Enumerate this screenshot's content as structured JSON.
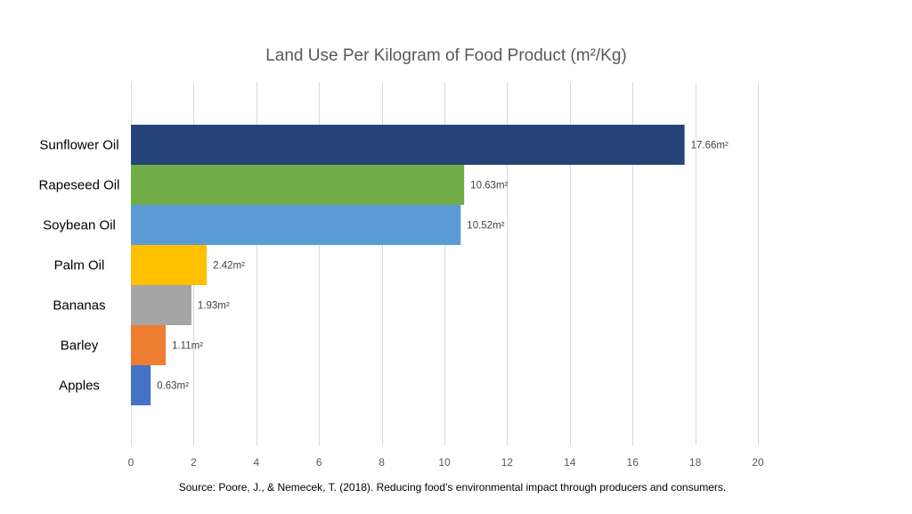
{
  "chart_data": {
    "type": "bar",
    "orientation": "horizontal",
    "title": "Land Use Per Kilogram of Food Product (m²/Kg)",
    "categories": [
      "Sunflower Oil",
      "Rapeseed Oil",
      "Soybean Oil",
      "Palm Oil",
      "Bananas",
      "Barley",
      "Apples"
    ],
    "values": [
      17.66,
      10.63,
      10.52,
      2.42,
      1.93,
      1.11,
      0.63
    ],
    "data_labels": [
      "17.66m²",
      "10.63m²",
      "10.52m²",
      "2.42m²",
      "1.93m²",
      "1.11m²",
      "0.63m²"
    ],
    "colors": [
      "#264478",
      "#70ad47",
      "#5b9bd5",
      "#ffc000",
      "#a5a5a5",
      "#ed7d31",
      "#4472c4"
    ],
    "xlim": [
      0,
      20
    ],
    "xticks": [
      "0",
      "2",
      "4",
      "6",
      "8",
      "10",
      "12",
      "14",
      "16",
      "18",
      "20"
    ],
    "grid": "vertical",
    "legend": "none",
    "source": "Source: Poore, J., & Nemecek, T. (2018). Reducing food’s environmental impact through producers and consumers."
  }
}
